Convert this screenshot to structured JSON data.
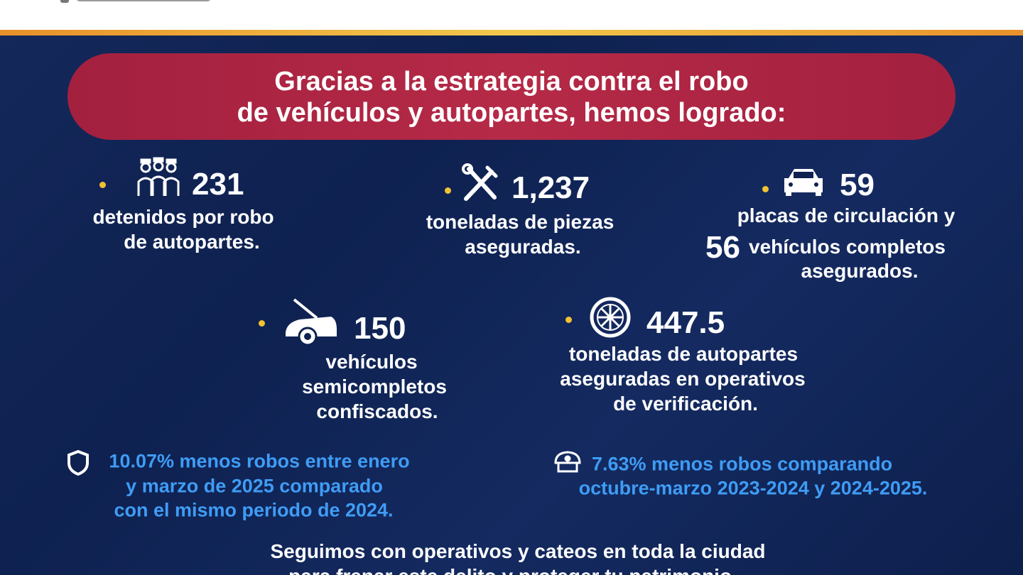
{
  "banner": {
    "lines": [
      "Gracias a la estrategia contra el robo",
      "de vehículos y autopartes, hemos logrado:"
    ]
  },
  "stats": [
    {
      "number": "231",
      "lines": [
        "detenidos por robo",
        "de autopartes."
      ]
    },
    {
      "number": "1,237",
      "lines": [
        "toneladas de piezas",
        "aseguradas."
      ]
    },
    {
      "number": "59",
      "lines": [
        "placas de circulación y"
      ],
      "second_number": "56",
      "second_lines": [
        "vehículos completos",
        "asegurados."
      ]
    },
    {
      "number": "150",
      "lines": [
        "vehículos",
        "semicompletos",
        "confiscados."
      ]
    },
    {
      "number": "447.5",
      "lines": [
        "toneladas de autopartes",
        "aseguradas en operativos",
        "de verificación."
      ]
    }
  ],
  "highlights": [
    {
      "lines": [
        "10.07% menos robos entre enero",
        "y marzo de 2025 comparado",
        "con el mismo periodo de 2024."
      ]
    },
    {
      "lines": [
        "7.63% menos robos comparando",
        "octubre-marzo 2023-2024 y 2024-2025."
      ]
    }
  ],
  "footer": {
    "lines": [
      "Seguimos con operativos y cateos en toda la ciudad",
      "para frenar este delito y proteger tu patrimonio."
    ]
  }
}
